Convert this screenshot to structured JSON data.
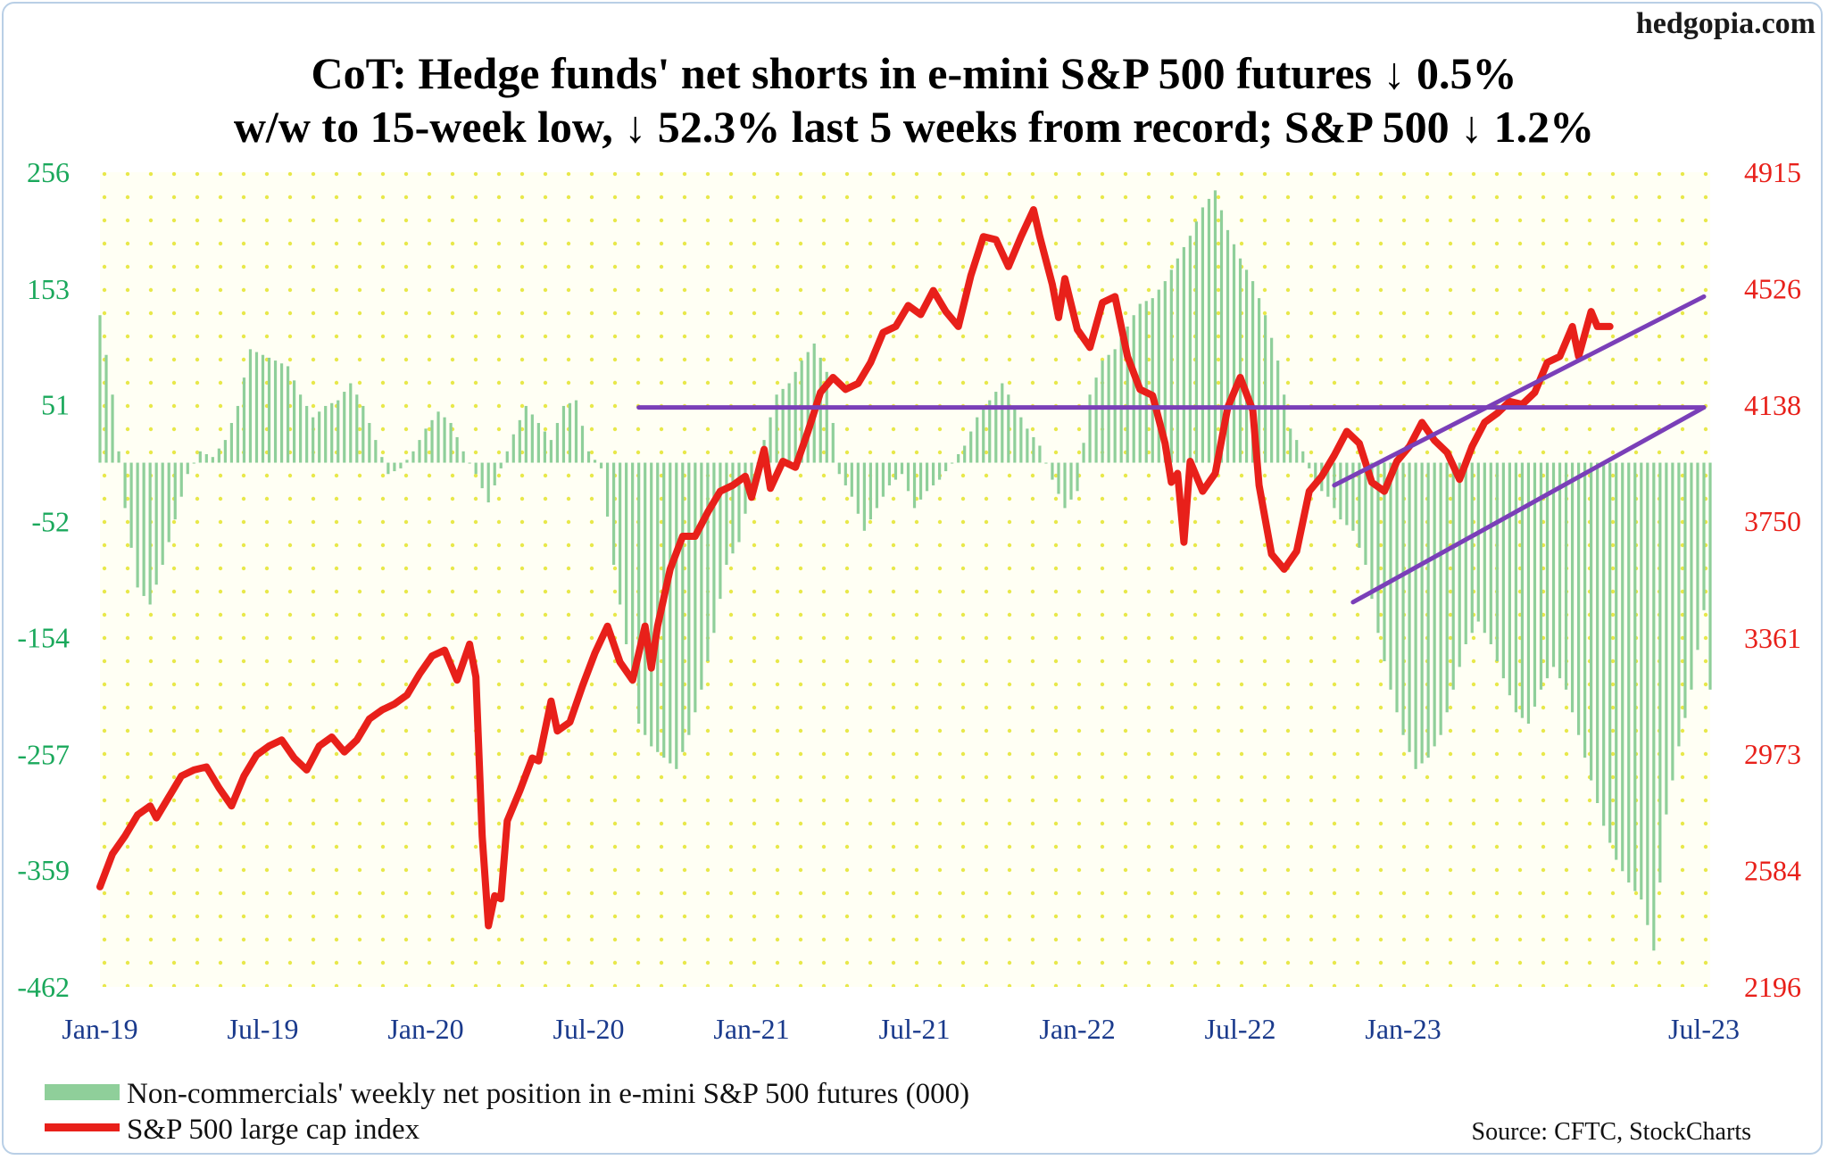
{
  "watermark": "hedgopia.com",
  "title_line1": "CoT: Hedge funds' net shorts in e-mini S&P 500 futures ↓ 0.5%",
  "title_line2": "w/w to 15-week low, ↓ 52.3% last 5 weeks from record; S&P 500 ↓ 1.2%",
  "source": "Source: CFTC, StockCharts",
  "colors": {
    "bars": "#8fcf9a",
    "line": "#e8201a",
    "trend": "#7a3fb8",
    "grid_dots": "#e8e84a",
    "left_axis": "#1aa85b",
    "right_axis": "#e8201a",
    "x_axis": "#1a3a8c"
  },
  "chart_data": {
    "type": "bar+line",
    "x_tick_labels": [
      "Jan-19",
      "Jul-19",
      "Jan-20",
      "Jul-20",
      "Jan-21",
      "Jul-21",
      "Jan-22",
      "Jul-22",
      "Jan-23",
      "Jul-23"
    ],
    "left_axis": {
      "ticks": [
        256,
        153,
        51,
        -52,
        -154,
        -257,
        -359,
        -462
      ],
      "range": [
        -462,
        256
      ]
    },
    "right_axis": {
      "ticks": [
        4915,
        4526,
        4138,
        3750,
        3361,
        2973,
        2584,
        2196
      ],
      "range": [
        2196,
        4915
      ]
    },
    "series": [
      {
        "name": "Non-commercials' weekly net position in e-mini S&P 500 futures (000)",
        "type": "bar",
        "axis": "left",
        "anchors": [
          [
            0,
            130
          ],
          [
            2,
            60
          ],
          [
            4,
            -40
          ],
          [
            6,
            -110
          ],
          [
            8,
            -125
          ],
          [
            10,
            -90
          ],
          [
            12,
            -50
          ],
          [
            14,
            -10
          ],
          [
            16,
            10
          ],
          [
            18,
            5
          ],
          [
            20,
            20
          ],
          [
            22,
            50
          ],
          [
            24,
            100
          ],
          [
            26,
            95
          ],
          [
            28,
            90
          ],
          [
            30,
            85
          ],
          [
            32,
            60
          ],
          [
            34,
            40
          ],
          [
            36,
            50
          ],
          [
            38,
            55
          ],
          [
            40,
            70
          ],
          [
            42,
            50
          ],
          [
            44,
            20
          ],
          [
            46,
            -10
          ],
          [
            48,
            -5
          ],
          [
            50,
            10
          ],
          [
            52,
            30
          ],
          [
            54,
            45
          ],
          [
            56,
            35
          ],
          [
            58,
            10
          ],
          [
            60,
            -10
          ],
          [
            62,
            -35
          ],
          [
            64,
            -5
          ],
          [
            66,
            25
          ],
          [
            68,
            50
          ],
          [
            70,
            35
          ],
          [
            72,
            20
          ],
          [
            74,
            50
          ],
          [
            76,
            55
          ],
          [
            78,
            10
          ],
          [
            80,
            -5
          ],
          [
            82,
            -90
          ],
          [
            84,
            -160
          ],
          [
            86,
            -230
          ],
          [
            88,
            -250
          ],
          [
            90,
            -260
          ],
          [
            92,
            -270
          ],
          [
            94,
            -240
          ],
          [
            96,
            -200
          ],
          [
            98,
            -150
          ],
          [
            100,
            -90
          ],
          [
            102,
            -70
          ],
          [
            104,
            -20
          ],
          [
            106,
            20
          ],
          [
            108,
            60
          ],
          [
            110,
            70
          ],
          [
            112,
            90
          ],
          [
            114,
            105
          ],
          [
            116,
            80
          ],
          [
            118,
            -10
          ],
          [
            120,
            -30
          ],
          [
            122,
            -60
          ],
          [
            124,
            -40
          ],
          [
            126,
            -20
          ],
          [
            128,
            -10
          ],
          [
            130,
            -40
          ],
          [
            132,
            -25
          ],
          [
            134,
            -15
          ],
          [
            136,
            0
          ],
          [
            138,
            15
          ],
          [
            140,
            40
          ],
          [
            142,
            55
          ],
          [
            144,
            70
          ],
          [
            146,
            50
          ],
          [
            148,
            30
          ],
          [
            150,
            15
          ],
          [
            152,
            -15
          ],
          [
            154,
            -40
          ],
          [
            156,
            -25
          ],
          [
            158,
            60
          ],
          [
            160,
            90
          ],
          [
            162,
            100
          ],
          [
            164,
            120
          ],
          [
            166,
            140
          ],
          [
            168,
            145
          ],
          [
            170,
            160
          ],
          [
            172,
            180
          ],
          [
            174,
            200
          ],
          [
            176,
            225
          ],
          [
            178,
            240
          ],
          [
            180,
            205
          ],
          [
            182,
            180
          ],
          [
            184,
            160
          ],
          [
            186,
            130
          ],
          [
            188,
            90
          ],
          [
            190,
            30
          ],
          [
            192,
            10
          ],
          [
            194,
            -20
          ],
          [
            196,
            -30
          ],
          [
            198,
            -50
          ],
          [
            200,
            -60
          ],
          [
            202,
            -90
          ],
          [
            204,
            -150
          ],
          [
            206,
            -200
          ],
          [
            208,
            -240
          ],
          [
            210,
            -270
          ],
          [
            212,
            -260
          ],
          [
            214,
            -240
          ],
          [
            216,
            -200
          ],
          [
            218,
            -160
          ],
          [
            220,
            -140
          ],
          [
            222,
            -160
          ],
          [
            224,
            -190
          ],
          [
            226,
            -220
          ],
          [
            228,
            -230
          ],
          [
            230,
            -200
          ],
          [
            232,
            -180
          ],
          [
            234,
            -200
          ],
          [
            236,
            -240
          ],
          [
            238,
            -280
          ],
          [
            240,
            -320
          ],
          [
            242,
            -350
          ],
          [
            244,
            -370
          ],
          [
            246,
            -385
          ],
          [
            248,
            -430
          ],
          [
            250,
            -310
          ],
          [
            252,
            -250
          ],
          [
            254,
            -200
          ],
          [
            256,
            -130
          ],
          [
            257,
            -200
          ]
        ]
      },
      {
        "name": "S&P 500 large cap index",
        "type": "line",
        "axis": "right",
        "anchors": [
          [
            0,
            2530
          ],
          [
            2,
            2640
          ],
          [
            4,
            2700
          ],
          [
            6,
            2770
          ],
          [
            8,
            2800
          ],
          [
            9,
            2760
          ],
          [
            11,
            2830
          ],
          [
            13,
            2900
          ],
          [
            15,
            2920
          ],
          [
            17,
            2930
          ],
          [
            19,
            2860
          ],
          [
            21,
            2800
          ],
          [
            23,
            2900
          ],
          [
            25,
            2970
          ],
          [
            27,
            3000
          ],
          [
            29,
            3020
          ],
          [
            31,
            2960
          ],
          [
            33,
            2920
          ],
          [
            35,
            3000
          ],
          [
            37,
            3030
          ],
          [
            39,
            2980
          ],
          [
            41,
            3020
          ],
          [
            43,
            3090
          ],
          [
            45,
            3120
          ],
          [
            47,
            3140
          ],
          [
            49,
            3170
          ],
          [
            51,
            3240
          ],
          [
            53,
            3300
          ],
          [
            55,
            3320
          ],
          [
            57,
            3220
          ],
          [
            59,
            3340
          ],
          [
            60,
            3230
          ],
          [
            61,
            2700
          ],
          [
            62,
            2400
          ],
          [
            63,
            2500
          ],
          [
            64,
            2490
          ],
          [
            65,
            2750
          ],
          [
            67,
            2850
          ],
          [
            69,
            2960
          ],
          [
            70,
            2950
          ],
          [
            72,
            3150
          ],
          [
            73,
            3050
          ],
          [
            75,
            3080
          ],
          [
            77,
            3200
          ],
          [
            79,
            3310
          ],
          [
            81,
            3400
          ],
          [
            83,
            3280
          ],
          [
            85,
            3220
          ],
          [
            87,
            3400
          ],
          [
            88,
            3260
          ],
          [
            89,
            3400
          ],
          [
            91,
            3590
          ],
          [
            93,
            3700
          ],
          [
            95,
            3700
          ],
          [
            97,
            3780
          ],
          [
            99,
            3850
          ],
          [
            101,
            3870
          ],
          [
            103,
            3900
          ],
          [
            104,
            3830
          ],
          [
            106,
            3990
          ],
          [
            107,
            3860
          ],
          [
            109,
            3950
          ],
          [
            111,
            3930
          ],
          [
            113,
            4050
          ],
          [
            115,
            4180
          ],
          [
            117,
            4230
          ],
          [
            119,
            4190
          ],
          [
            121,
            4210
          ],
          [
            123,
            4280
          ],
          [
            125,
            4380
          ],
          [
            127,
            4400
          ],
          [
            129,
            4470
          ],
          [
            131,
            4440
          ],
          [
            133,
            4520
          ],
          [
            135,
            4450
          ],
          [
            137,
            4400
          ],
          [
            139,
            4570
          ],
          [
            141,
            4700
          ],
          [
            143,
            4690
          ],
          [
            145,
            4600
          ],
          [
            147,
            4700
          ],
          [
            149,
            4790
          ],
          [
            150,
            4700
          ],
          [
            152,
            4540
          ],
          [
            153,
            4430
          ],
          [
            154,
            4560
          ],
          [
            156,
            4390
          ],
          [
            158,
            4330
          ],
          [
            160,
            4480
          ],
          [
            162,
            4500
          ],
          [
            164,
            4300
          ],
          [
            166,
            4190
          ],
          [
            168,
            4170
          ],
          [
            170,
            4010
          ],
          [
            171,
            3880
          ],
          [
            172,
            3910
          ],
          [
            173,
            3680
          ],
          [
            174,
            3950
          ],
          [
            176,
            3850
          ],
          [
            178,
            3910
          ],
          [
            180,
            4130
          ],
          [
            182,
            4230
          ],
          [
            184,
            4120
          ],
          [
            185,
            3870
          ],
          [
            187,
            3640
          ],
          [
            189,
            3590
          ],
          [
            191,
            3650
          ],
          [
            193,
            3850
          ],
          [
            195,
            3900
          ],
          [
            197,
            3970
          ],
          [
            199,
            4050
          ],
          [
            201,
            4010
          ],
          [
            203,
            3880
          ],
          [
            205,
            3850
          ],
          [
            207,
            3950
          ],
          [
            209,
            4000
          ],
          [
            211,
            4080
          ],
          [
            213,
            4020
          ],
          [
            215,
            3980
          ],
          [
            217,
            3890
          ],
          [
            219,
            4000
          ],
          [
            221,
            4080
          ],
          [
            223,
            4110
          ],
          [
            225,
            4150
          ],
          [
            227,
            4140
          ],
          [
            229,
            4180
          ],
          [
            231,
            4280
          ],
          [
            233,
            4300
          ],
          [
            235,
            4400
          ],
          [
            236,
            4300
          ],
          [
            238,
            4450
          ],
          [
            239,
            4400
          ],
          [
            241,
            4400
          ]
        ]
      }
    ],
    "trend_lines": [
      {
        "axis": "right",
        "points": [
          [
            86,
            4130
          ],
          [
            256,
            4130
          ]
        ]
      },
      {
        "axis": "right",
        "points": [
          [
            197,
            3870
          ],
          [
            256,
            4500
          ]
        ]
      },
      {
        "axis": "right",
        "points": [
          [
            200,
            3480
          ],
          [
            256,
            4130
          ]
        ]
      }
    ],
    "legend_position": "bottom-left",
    "grid": "dotted"
  }
}
